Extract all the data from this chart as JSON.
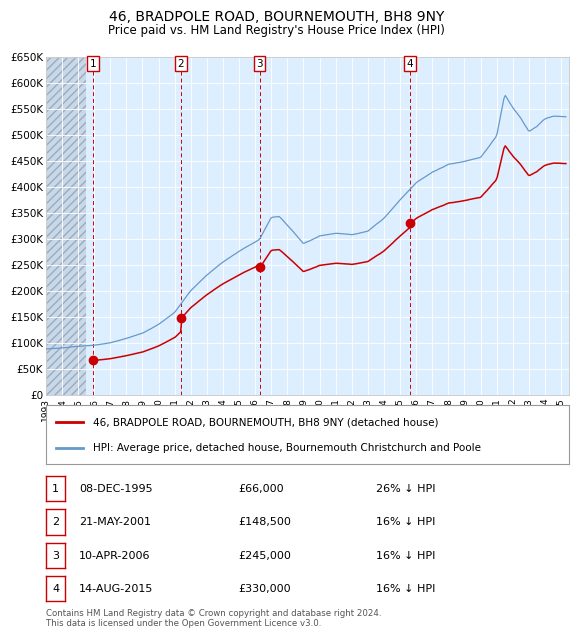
{
  "title": "46, BRADPOLE ROAD, BOURNEMOUTH, BH8 9NY",
  "subtitle": "Price paid vs. HM Land Registry's House Price Index (HPI)",
  "property_label": "46, BRADPOLE ROAD, BOURNEMOUTH, BH8 9NY (detached house)",
  "hpi_label": "HPI: Average price, detached house, Bournemouth Christchurch and Poole",
  "footer": "Contains HM Land Registry data © Crown copyright and database right 2024.\nThis data is licensed under the Open Government Licence v3.0.",
  "transactions": [
    {
      "num": 1,
      "date": "08-DEC-1995",
      "price": 66000,
      "pct": "26% ↓ HPI",
      "date_x": 1995.94
    },
    {
      "num": 2,
      "date": "21-MAY-2001",
      "price": 148500,
      "pct": "16% ↓ HPI",
      "date_x": 2001.39
    },
    {
      "num": 3,
      "date": "10-APR-2006",
      "price": 245000,
      "pct": "16% ↓ HPI",
      "date_x": 2006.27
    },
    {
      "num": 4,
      "date": "14-AUG-2015",
      "price": 330000,
      "pct": "16% ↓ HPI",
      "date_x": 2015.62
    }
  ],
  "ylim": [
    0,
    650000
  ],
  "xlim": [
    1993.0,
    2025.5
  ],
  "yticks": [
    0,
    50000,
    100000,
    150000,
    200000,
    250000,
    300000,
    350000,
    400000,
    450000,
    500000,
    550000,
    600000,
    650000
  ],
  "ytick_labels": [
    "£0",
    "£50K",
    "£100K",
    "£150K",
    "£200K",
    "£250K",
    "£300K",
    "£350K",
    "£400K",
    "£450K",
    "£500K",
    "£550K",
    "£600K",
    "£650K"
  ],
  "hpi_color": "#6699cc",
  "property_color": "#cc0000",
  "background_chart": "#ddeeff",
  "grid_color": "#ffffff",
  "title_fontsize": 10,
  "subtitle_fontsize": 8.5
}
